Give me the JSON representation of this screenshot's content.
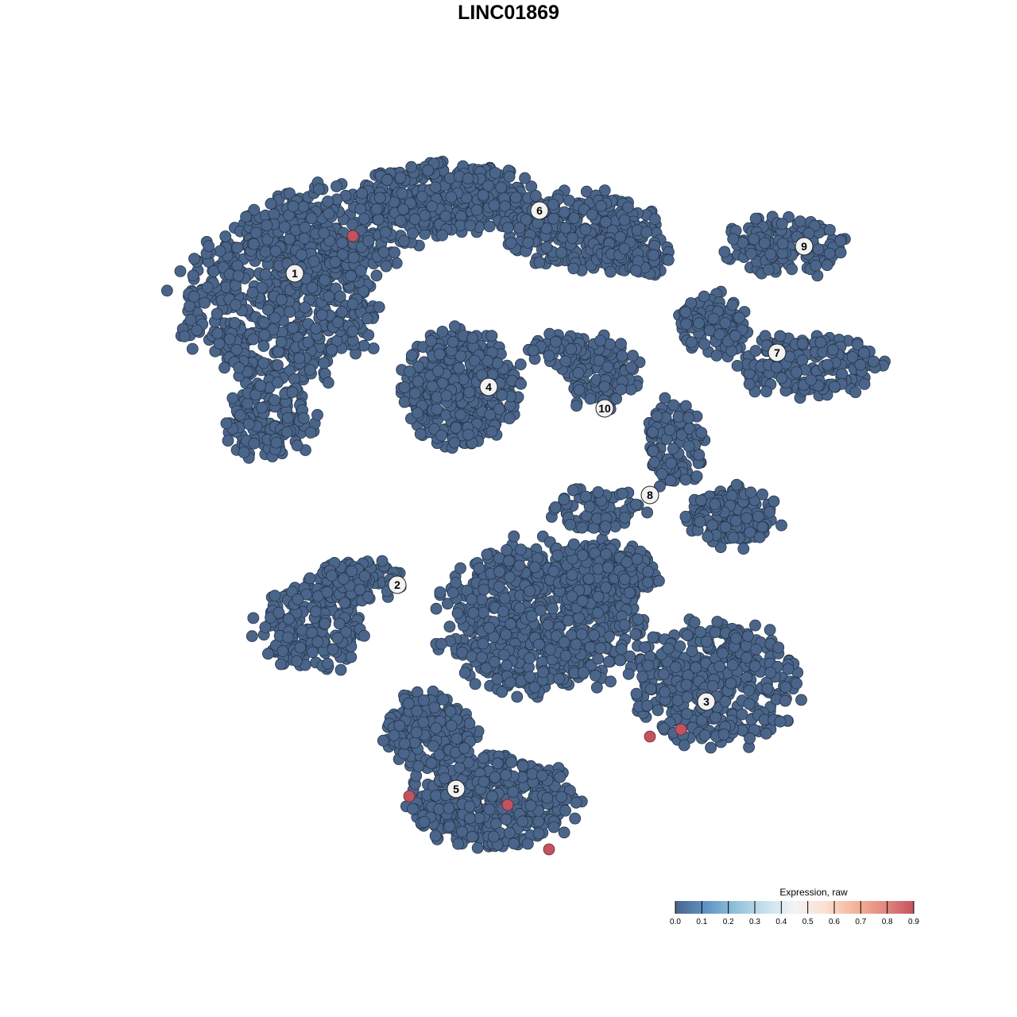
{
  "chart_data": {
    "type": "scatter",
    "title": "LINC01869",
    "xlabel": "",
    "ylabel": "",
    "grid": false,
    "axes_visible": false,
    "x_range": [
      -47,
      47
    ],
    "y_range": [
      -46,
      46
    ],
    "point_color_default": "#4a6589",
    "point_stroke": "#26354a",
    "clusters": [
      {
        "label": "1",
        "center": [
          -29.4,
          29.6
        ],
        "blobs": [
          [
            -31.5,
            26,
            13,
            11,
            600
          ],
          [
            -24.5,
            35,
            11,
            6,
            300
          ],
          [
            -32.5,
            11,
            6,
            5,
            150
          ]
        ]
      },
      {
        "label": "2",
        "center": [
          -16.5,
          -9.6
        ],
        "blobs": [
          [
            -27.5,
            -15,
            7,
            6,
            200
          ],
          [
            -21.5,
            -9,
            6,
            3,
            100
          ],
          [
            1.5,
            -14,
            13,
            10,
            700
          ],
          [
            9.5,
            -8,
            7,
            4,
            200
          ]
        ]
      },
      {
        "label": "3",
        "center": [
          22.4,
          -24.3
        ],
        "blobs": [
          [
            23.5,
            -22,
            11,
            8,
            400
          ]
        ]
      },
      {
        "label": "4",
        "center": [
          -5.0,
          15.3
        ],
        "blobs": [
          [
            -8.5,
            15,
            7.5,
            7.5,
            450
          ]
        ]
      },
      {
        "label": "5",
        "center": [
          -9.1,
          -35.3
        ],
        "blobs": [
          [
            -4.5,
            -37,
            11,
            6,
            450
          ],
          [
            -12.5,
            -28,
            6,
            5,
            200
          ]
        ]
      },
      {
        "label": "6",
        "center": [
          1.4,
          37.5
        ],
        "blobs": [
          [
            -10.5,
            39,
            11,
            5,
            400
          ],
          [
            6.5,
            35,
            10,
            5,
            300
          ],
          [
            13.5,
            32,
            5,
            3,
            80
          ]
        ]
      },
      {
        "label": "7",
        "center": [
          31.3,
          19.6
        ],
        "blobs": [
          [
            34.5,
            18,
            10,
            4,
            200
          ],
          [
            23.5,
            23,
            5,
            4,
            120
          ]
        ]
      },
      {
        "label": "8",
        "center": [
          15.3,
          1.7
        ],
        "blobs": [
          [
            18.5,
            8,
            4,
            6,
            120
          ],
          [
            25.5,
            -1,
            6,
            4,
            150
          ],
          [
            8.5,
            0,
            6,
            3,
            80
          ]
        ]
      },
      {
        "label": "9",
        "center": [
          34.7,
          33.0
        ],
        "blobs": [
          [
            32.5,
            33,
            8,
            4,
            150
          ]
        ]
      },
      {
        "label": "10",
        "center": [
          9.6,
          12.6
        ],
        "blobs": [
          [
            9.5,
            17,
            5,
            5,
            120
          ],
          [
            3.5,
            20,
            4,
            2,
            50
          ]
        ]
      }
    ],
    "expressing_points": [
      {
        "x": -22.1,
        "y": 34.3,
        "value": 0.9
      },
      {
        "x": 15.3,
        "y": -28.7,
        "value": 0.9
      },
      {
        "x": 19.2,
        "y": -27.8,
        "value": 0.9
      },
      {
        "x": -15.0,
        "y": -36.2,
        "value": 0.9
      },
      {
        "x": -2.6,
        "y": -37.3,
        "value": 0.9
      },
      {
        "x": 2.6,
        "y": -42.9,
        "value": 0.9
      }
    ],
    "legend": {
      "title": "Expression, raw",
      "placement": "bottom-right",
      "range": [
        0.0,
        0.9
      ],
      "ticks": [
        "0.0",
        "0.1",
        "0.2",
        "0.3",
        "0.4",
        "0.5",
        "0.6",
        "0.7",
        "0.8",
        "0.9"
      ],
      "colors": [
        "#4a6589",
        "#5f93c4",
        "#8fc0da",
        "#c7e0ec",
        "#f2f4f6",
        "#fbe0d3",
        "#f4b59a",
        "#e28a7f",
        "#c4535f"
      ]
    }
  }
}
